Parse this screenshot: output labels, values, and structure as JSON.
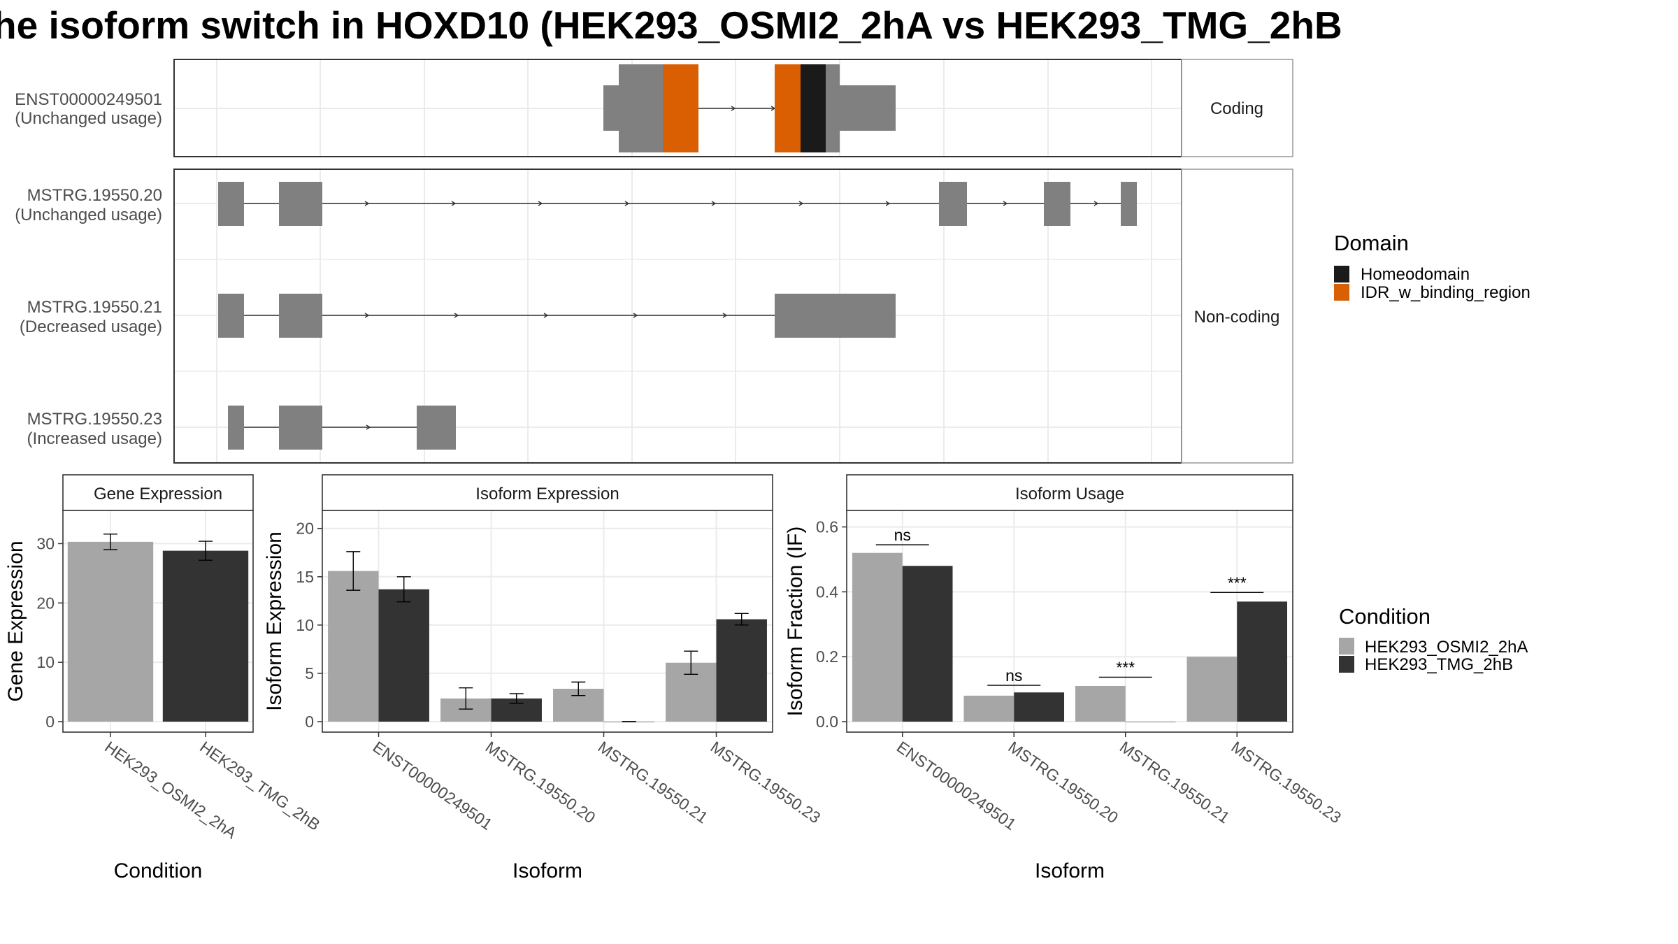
{
  "title": "he isoform switch in HOXD10 (HEK293_OSMI2_2hA vs HEK293_TMG_2hB",
  "colors": {
    "exon": "#808080",
    "intron": "#333333",
    "homeodomain": "#1a1a1a",
    "idr": "#d95f02",
    "cond_a": "#a6a6a6",
    "cond_b": "#333333",
    "grid": "#ebebeb",
    "strip_bg": "#ffffff",
    "axis_text": "#4d4d4d"
  },
  "structure": {
    "facets": [
      {
        "label": "Coding",
        "rows": [
          0
        ]
      },
      {
        "label": "Non-coding",
        "rows": [
          1,
          2,
          3
        ]
      }
    ],
    "isoforms": [
      {
        "id": "ENST00000249501",
        "usage": "(Unchanged usage)"
      },
      {
        "id": "MSTRG.19550.20",
        "usage": "(Unchanged usage)"
      },
      {
        "id": "MSTRG.19550.21",
        "usage": "(Decreased usage)"
      },
      {
        "id": "MSTRG.19550.23",
        "usage": "(Increased usage)"
      }
    ],
    "domain_legend": {
      "title": "Domain",
      "entries": [
        {
          "label": "Homeodomain",
          "color_key": "homeodomain"
        },
        {
          "label": "IDR_w_binding_region",
          "color_key": "idr"
        }
      ]
    }
  },
  "chart_data": [
    {
      "type": "bar",
      "strip": "Gene Expression",
      "xlabel": "Condition",
      "ylabel": "Gene Expression",
      "ylim": [
        0,
        35
      ],
      "yticks": [
        0,
        10,
        20,
        30
      ],
      "categories": [
        "HEK293_OSMI2_2hA",
        "HEK293_TMG_2hB"
      ],
      "series": [
        {
          "name": "HEK293_OSMI2_2hA",
          "values": [
            30.3,
            null
          ],
          "err": [
            1.3,
            null
          ]
        },
        {
          "name": "HEK293_TMG_2hB",
          "values": [
            null,
            28.8
          ],
          "err": [
            null,
            1.6
          ]
        }
      ]
    },
    {
      "type": "bar",
      "strip": "Isoform Expression",
      "xlabel": "Isoform",
      "ylabel": "Isoform Expression",
      "ylim": [
        0,
        20
      ],
      "yticks": [
        0,
        5,
        10,
        15,
        20
      ],
      "categories": [
        "ENST00000249501",
        "MSTRG.19550.20",
        "MSTRG.19550.21",
        "MSTRG.19550.23"
      ],
      "series": [
        {
          "name": "HEK293_OSMI2_2hA",
          "values": [
            15.6,
            2.4,
            3.4,
            6.1
          ],
          "err": [
            2.0,
            1.1,
            0.7,
            1.2
          ]
        },
        {
          "name": "HEK293_TMG_2hB",
          "values": [
            13.7,
            2.4,
            0.0,
            10.6
          ],
          "err": [
            1.3,
            0.5,
            0.0,
            0.6
          ]
        }
      ]
    },
    {
      "type": "bar",
      "strip": "Isoform Usage",
      "xlabel": "Isoform",
      "ylabel": "Isoform Fraction (IF)",
      "ylim": [
        0,
        0.6
      ],
      "yticks": [
        0.0,
        0.2,
        0.4,
        0.6
      ],
      "tick_format": 1,
      "categories": [
        "ENST00000249501",
        "MSTRG.19550.20",
        "MSTRG.19550.21",
        "MSTRG.19550.23"
      ],
      "series": [
        {
          "name": "HEK293_OSMI2_2hA",
          "values": [
            0.52,
            0.08,
            0.11,
            0.2
          ]
        },
        {
          "name": "HEK293_TMG_2hB",
          "values": [
            0.48,
            0.09,
            0.0,
            0.37
          ]
        }
      ],
      "annotations": [
        {
          "category": "ENST00000249501",
          "text": "ns",
          "y": 0.545
        },
        {
          "category": "MSTRG.19550.20",
          "text": "ns",
          "y": 0.112
        },
        {
          "category": "MSTRG.19550.21",
          "text": "***",
          "y": 0.137
        },
        {
          "category": "MSTRG.19550.23",
          "text": "***",
          "y": 0.398
        }
      ]
    }
  ],
  "condition_legend": {
    "title": "Condition",
    "entries": [
      {
        "label": "HEK293_OSMI2_2hA",
        "color_key": "cond_a"
      },
      {
        "label": "HEK293_TMG_2hB",
        "color_key": "cond_b"
      }
    ]
  }
}
